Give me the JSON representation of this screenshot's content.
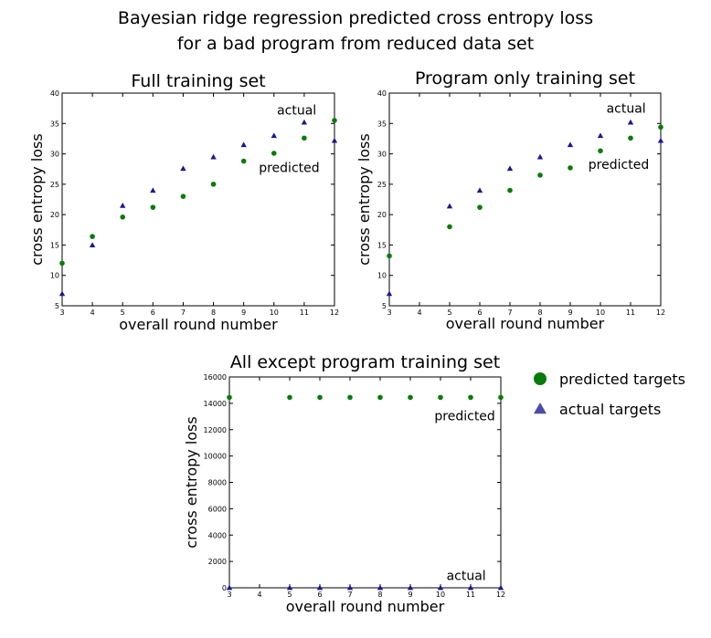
{
  "figure": {
    "title_line1": "Bayesian ridge regression predicted cross entropy loss",
    "title_line2": "for a bad program from reduced data set"
  },
  "legend": {
    "entries": [
      {
        "label": "predicted targets",
        "marker": "circle",
        "color": "#0a7a0a"
      },
      {
        "label": "actual targets",
        "marker": "triangle",
        "color": "#4b4ba8"
      }
    ]
  },
  "chart_data": [
    {
      "type": "scatter",
      "title": "Full training set",
      "xlabel": "overall round number",
      "ylabel": "cross entropy loss",
      "xlim": [
        3,
        12
      ],
      "ylim": [
        5,
        40
      ],
      "xticks": [
        3,
        4,
        5,
        6,
        7,
        8,
        9,
        10,
        11,
        12
      ],
      "yticks": [
        5,
        10,
        15,
        20,
        25,
        30,
        35,
        40
      ],
      "annotations": [
        {
          "text": "actual",
          "x": 10.1,
          "y": 36.5
        },
        {
          "text": "predicted",
          "x": 9.5,
          "y": 27.0
        }
      ],
      "series": [
        {
          "name": "predicted targets",
          "marker": "circle",
          "color": "#0a7a0a",
          "x": [
            3,
            4,
            5,
            6,
            7,
            8,
            9,
            10,
            11,
            12
          ],
          "y": [
            12,
            16.4,
            19.6,
            21.2,
            23,
            25,
            28.8,
            30.1,
            32.6,
            35.5
          ]
        },
        {
          "name": "actual targets",
          "marker": "triangle",
          "color": "#1a1a8c",
          "x": [
            3,
            4,
            5,
            6,
            7,
            8,
            9,
            10,
            11,
            12
          ],
          "y": [
            7,
            15,
            21.5,
            24,
            27.6,
            29.5,
            31.5,
            33,
            35.2,
            32.2
          ]
        }
      ]
    },
    {
      "type": "scatter",
      "title": "Program only training set",
      "xlabel": "overall round number",
      "ylabel": "cross entropy loss",
      "xlim": [
        3,
        12
      ],
      "ylim": [
        5,
        40
      ],
      "xticks": [
        3,
        4,
        5,
        6,
        7,
        8,
        9,
        10,
        11,
        12
      ],
      "yticks": [
        5,
        10,
        15,
        20,
        25,
        30,
        35,
        40
      ],
      "annotations": [
        {
          "text": "actual",
          "x": 10.2,
          "y": 36.8
        },
        {
          "text": "predicted",
          "x": 9.6,
          "y": 27.5
        }
      ],
      "series": [
        {
          "name": "predicted targets",
          "marker": "circle",
          "color": "#0a7a0a",
          "x": [
            3,
            5,
            6,
            7,
            8,
            9,
            10,
            11,
            12
          ],
          "y": [
            13.2,
            18,
            21.2,
            24,
            26.5,
            27.7,
            30.5,
            32.6,
            34.4
          ]
        },
        {
          "name": "actual targets",
          "marker": "triangle",
          "color": "#1a1a8c",
          "x": [
            3,
            5,
            6,
            7,
            8,
            9,
            10,
            11,
            12
          ],
          "y": [
            7,
            21.4,
            24,
            27.6,
            29.5,
            31.5,
            33,
            35.2,
            32.2
          ]
        }
      ]
    },
    {
      "type": "scatter",
      "title": "All except program training set",
      "xlabel": "overall round number",
      "ylabel": "cross entropy loss",
      "xlim": [
        3,
        12
      ],
      "ylim": [
        0,
        16000
      ],
      "xticks": [
        3,
        4,
        5,
        6,
        7,
        8,
        9,
        10,
        11,
        12
      ],
      "yticks": [
        0,
        2000,
        4000,
        6000,
        8000,
        10000,
        12000,
        14000,
        16000
      ],
      "annotations": [
        {
          "text": "predicted",
          "x": 9.8,
          "y": 12700
        },
        {
          "text": "actual",
          "x": 10.2,
          "y": 600
        }
      ],
      "series": [
        {
          "name": "predicted targets",
          "marker": "circle",
          "color": "#0a7a0a",
          "x": [
            3,
            5,
            6,
            7,
            8,
            9,
            10,
            11,
            12
          ],
          "y": [
            14450,
            14450,
            14450,
            14450,
            14450,
            14450,
            14450,
            14450,
            14450
          ]
        },
        {
          "name": "actual targets",
          "marker": "triangle",
          "color": "#1a1a8c",
          "x": [
            3,
            5,
            6,
            7,
            8,
            9,
            10,
            11,
            12
          ],
          "y": [
            10,
            10,
            10,
            10,
            10,
            10,
            10,
            10,
            10
          ]
        }
      ]
    }
  ]
}
